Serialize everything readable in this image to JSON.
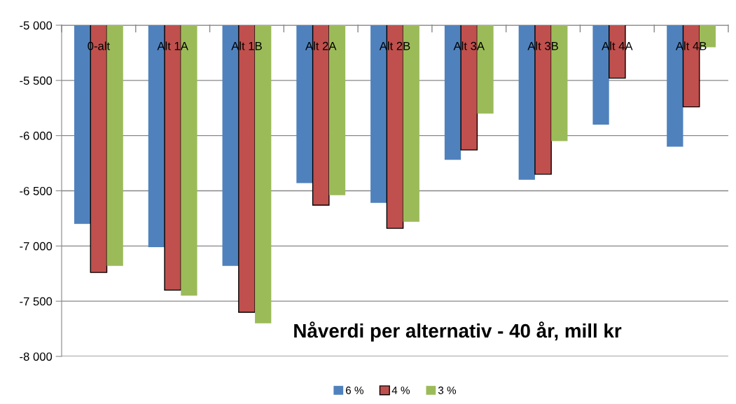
{
  "chart_data": {
    "type": "bar",
    "title": "Nåverdi per alternativ - 40 år, mill kr",
    "categories": [
      "0-alt",
      "Alt 1A",
      "Alt 1B",
      "Alt 2A",
      "Alt 2B",
      "Alt 3A",
      "Alt 3B",
      "Alt 4A",
      "Alt 4B"
    ],
    "series": [
      {
        "name": "6 %",
        "color": "#4f81bd",
        "values": [
          -6800,
          -7010,
          -7180,
          -6430,
          -6610,
          -6220,
          -6400,
          -5900,
          -6100
        ]
      },
      {
        "name": "4 %",
        "color": "#c0504d",
        "values": [
          -7240,
          -7400,
          -7600,
          -6630,
          -6840,
          -6130,
          -6350,
          -5480,
          -5740
        ]
      },
      {
        "name": "3 %",
        "color": "#9bbb59",
        "values": [
          -7180,
          -7450,
          -7700,
          -6540,
          -6780,
          -5800,
          -6050,
          null,
          -5200
        ]
      }
    ],
    "ylim": [
      -8000,
      -5000
    ],
    "yticks": [
      {
        "value": -8000,
        "label": "-8 000"
      },
      {
        "value": -7500,
        "label": "-7 500"
      },
      {
        "value": -7000,
        "label": "-7 000"
      },
      {
        "value": -6500,
        "label": "-6 500"
      },
      {
        "value": -6000,
        "label": "-6 000"
      },
      {
        "value": -5500,
        "label": "-5 500"
      },
      {
        "value": -5000,
        "label": "-5 000"
      }
    ],
    "grid": "y",
    "legend": "bottom"
  }
}
